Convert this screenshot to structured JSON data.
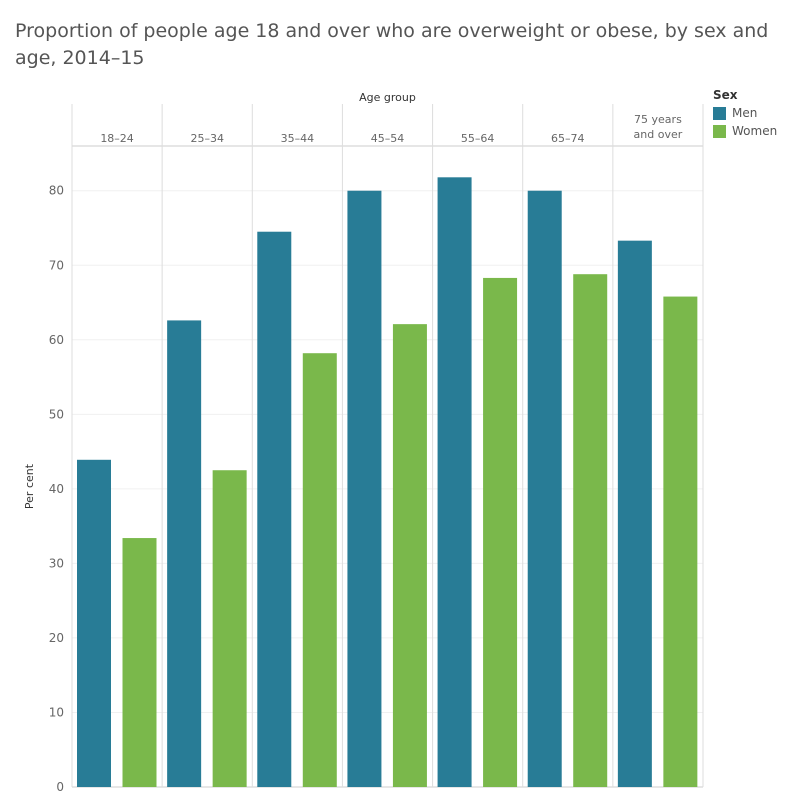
{
  "title": "Proportion of people age 18 and over who are overweight or obese, by sex and age, 2014–15",
  "legend": {
    "title": "Sex",
    "items": [
      {
        "label": "Men",
        "color": "#287c96"
      },
      {
        "label": "Women",
        "color": "#7ab84b"
      }
    ]
  },
  "chart_data": {
    "type": "bar",
    "column_header": "Age group",
    "categories": [
      [
        "18–24"
      ],
      [
        "25–34"
      ],
      [
        "35–44"
      ],
      [
        "45–54"
      ],
      [
        "55–64"
      ],
      [
        "65–74"
      ],
      [
        "75 years",
        "and over"
      ]
    ],
    "series": [
      {
        "name": "Men",
        "color": "#287c96",
        "values": [
          43.9,
          62.6,
          74.5,
          80.0,
          81.8,
          80.0,
          73.3
        ]
      },
      {
        "name": "Women",
        "color": "#7ab84b",
        "values": [
          33.4,
          42.5,
          58.2,
          62.1,
          68.3,
          68.8,
          65.8
        ]
      }
    ],
    "ylabel": "Per cent",
    "ylim": [
      0,
      86
    ],
    "yticks": [
      0,
      10,
      20,
      30,
      40,
      50,
      60,
      70,
      80
    ],
    "grid": true,
    "legend_position": "right"
  }
}
